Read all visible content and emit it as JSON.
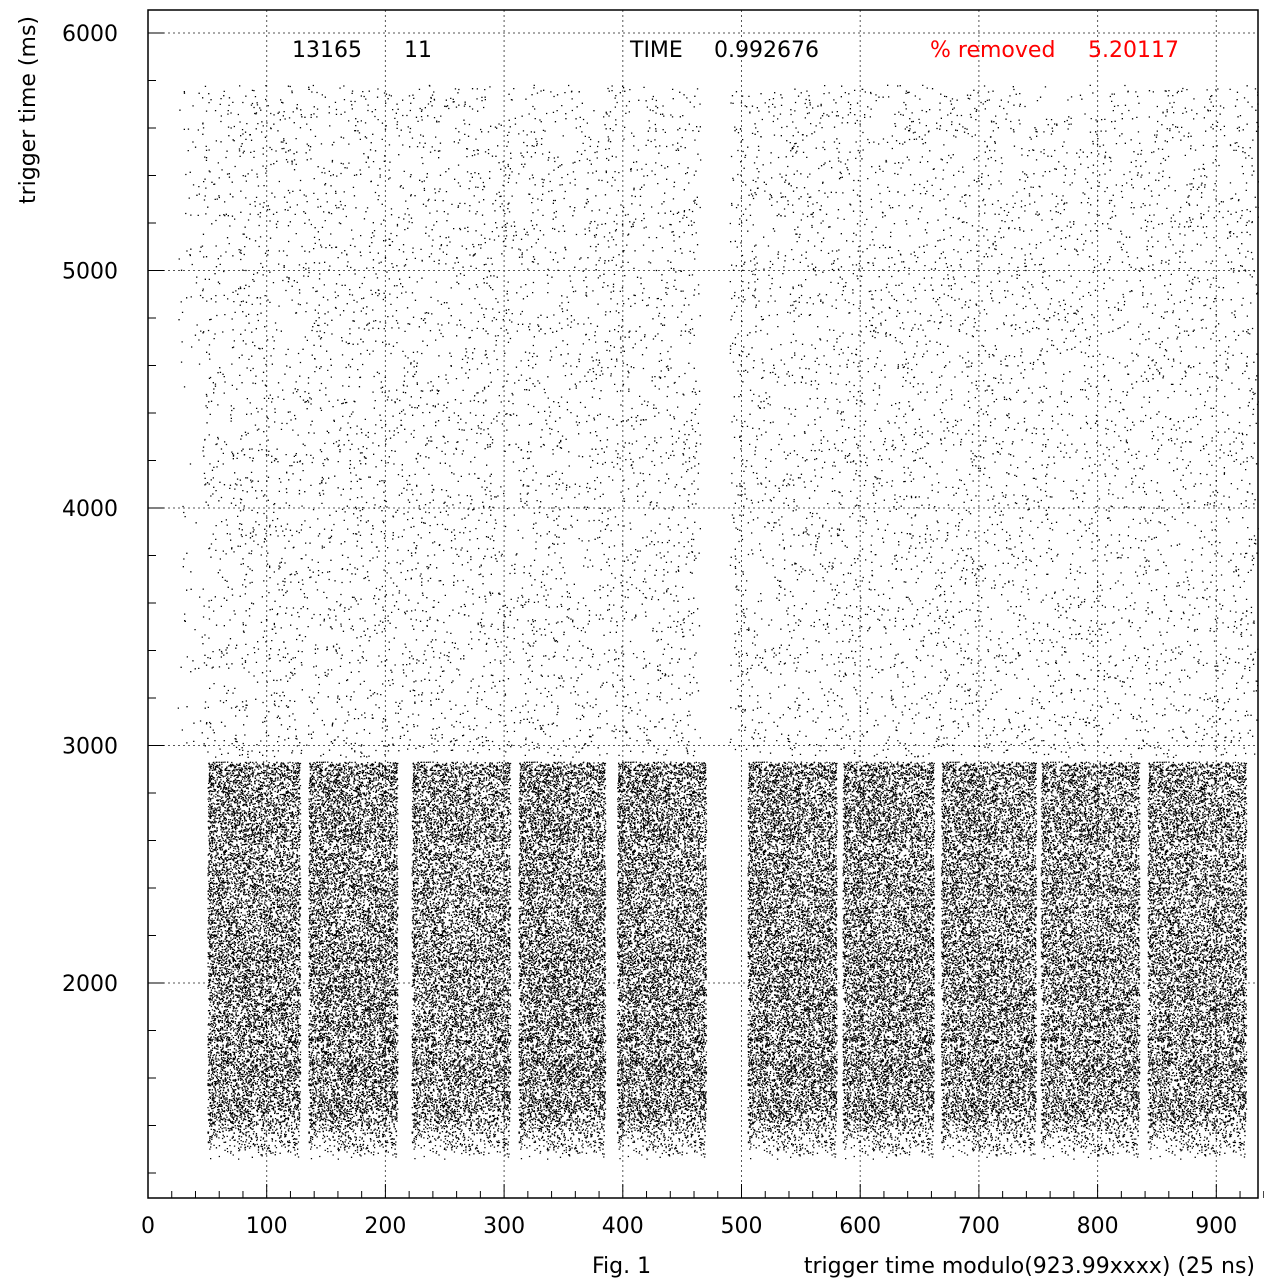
{
  "chart_data": {
    "type": "scatter",
    "title": "",
    "xlabel": "trigger time modulo(923.99xxxx) (25 ns)",
    "ylabel": "trigger time (ms)",
    "xlim": [
      0,
      940
    ],
    "ylim": [
      1150,
      6100
    ],
    "grid": true,
    "x_ticks": [
      0,
      100,
      200,
      300,
      400,
      500,
      600,
      700,
      800,
      900
    ],
    "y_ticks": [
      2000,
      3000,
      4000,
      5000,
      6000
    ],
    "x_tick_labels": [
      "0",
      "100",
      "200",
      "300",
      "400",
      "500",
      "600",
      "700",
      "800",
      "900"
    ],
    "y_tick_labels": [
      "2000",
      "3000",
      "4000",
      "5000",
      "6000"
    ],
    "header": {
      "run": "13165",
      "event": "11",
      "time_label": "TIME",
      "time_value": "0.992676",
      "removed_label": "% removed",
      "removed_value": "5.20117",
      "removed_color": "#ff0000"
    },
    "caption": "Fig. 1",
    "colors": {
      "points": "#000000",
      "grid": "#555555"
    },
    "regions": {
      "upper_sparse": {
        "y_range": [
          2950,
          5780
        ],
        "x_ranges": [
          [
            25,
            465
          ],
          [
            490,
            935
          ]
        ],
        "description_density": "sparse"
      },
      "lower_dense": {
        "y_range": [
          1250,
          2930
        ],
        "bands": [
          [
            50,
            128
          ],
          [
            135,
            210
          ],
          [
            222,
            305
          ],
          [
            312,
            385
          ],
          [
            395,
            470
          ],
          [
            505,
            580
          ],
          [
            585,
            662
          ],
          [
            668,
            748
          ],
          [
            752,
            835
          ],
          [
            842,
            925
          ]
        ],
        "description_density": "dense"
      }
    }
  }
}
